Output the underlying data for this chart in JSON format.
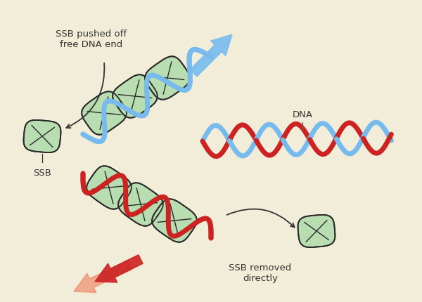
{
  "background_color": "#f2edd8",
  "ssb_fill": "#b8ddb0",
  "ssb_edge": "#2a2a2a",
  "blue_dark": "#2277cc",
  "blue_light": "#77bbee",
  "red_dark": "#cc2222",
  "red_light": "#ee6644",
  "text_color": "#333333",
  "label_pushed": "SSB pushed off\nfree DNA end",
  "label_removed": "SSB removed\ndirectly",
  "label_ssb": "SSB",
  "label_dna": "DNA",
  "figsize": [
    6.0,
    4.31
  ],
  "dpi": 100
}
